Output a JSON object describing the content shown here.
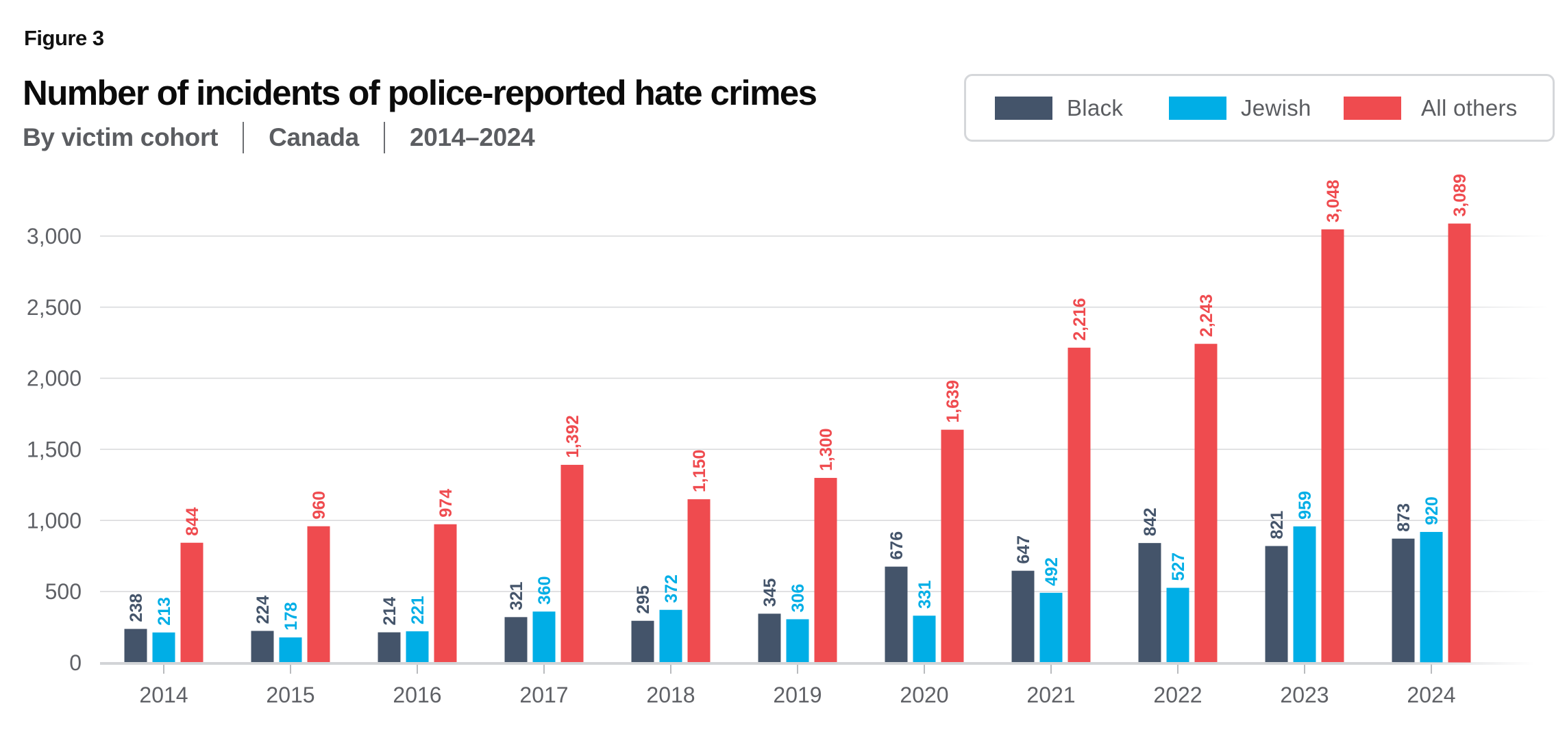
{
  "figure_label": "Figure 3",
  "chart_data": {
    "type": "bar",
    "title": "Number of incidents of police-reported hate crimes",
    "subtitle_parts": [
      "By victim cohort",
      "Canada",
      "2014–2024"
    ],
    "xlabel": "",
    "ylabel": "",
    "ylim": [
      0,
      3000
    ],
    "yticks": [
      0,
      500,
      1000,
      1500,
      2000,
      2500,
      3000
    ],
    "ytick_labels": [
      "0",
      "500",
      "1,000",
      "1,500",
      "2,000",
      "2,500",
      "3,000"
    ],
    "grid": true,
    "legend_position": "top-right",
    "categories": [
      "2014",
      "2015",
      "2016",
      "2017",
      "2018",
      "2019",
      "2020",
      "2021",
      "2022",
      "2023",
      "2024"
    ],
    "series": [
      {
        "name": "Black",
        "color": "#44546a",
        "values": [
          238,
          224,
          214,
          321,
          295,
          345,
          676,
          647,
          842,
          821,
          873
        ],
        "labels": [
          "238",
          "224",
          "214",
          "321",
          "295",
          "345",
          "676",
          "647",
          "842",
          "821",
          "873"
        ]
      },
      {
        "name": "Jewish",
        "color": "#00aee6",
        "values": [
          213,
          178,
          221,
          360,
          372,
          306,
          331,
          492,
          527,
          959,
          920
        ],
        "labels": [
          "213",
          "178",
          "221",
          "360",
          "372",
          "306",
          "331",
          "492",
          "527",
          "959",
          "920"
        ]
      },
      {
        "name": "All others",
        "color": "#ef4b4f",
        "values": [
          844,
          960,
          974,
          1392,
          1150,
          1300,
          1639,
          2216,
          2243,
          3048,
          3089
        ],
        "labels": [
          "844",
          "960",
          "974",
          "1,392",
          "1,150",
          "1,300",
          "1,639",
          "2,216",
          "2,243",
          "3,048",
          "3,089"
        ]
      }
    ]
  }
}
